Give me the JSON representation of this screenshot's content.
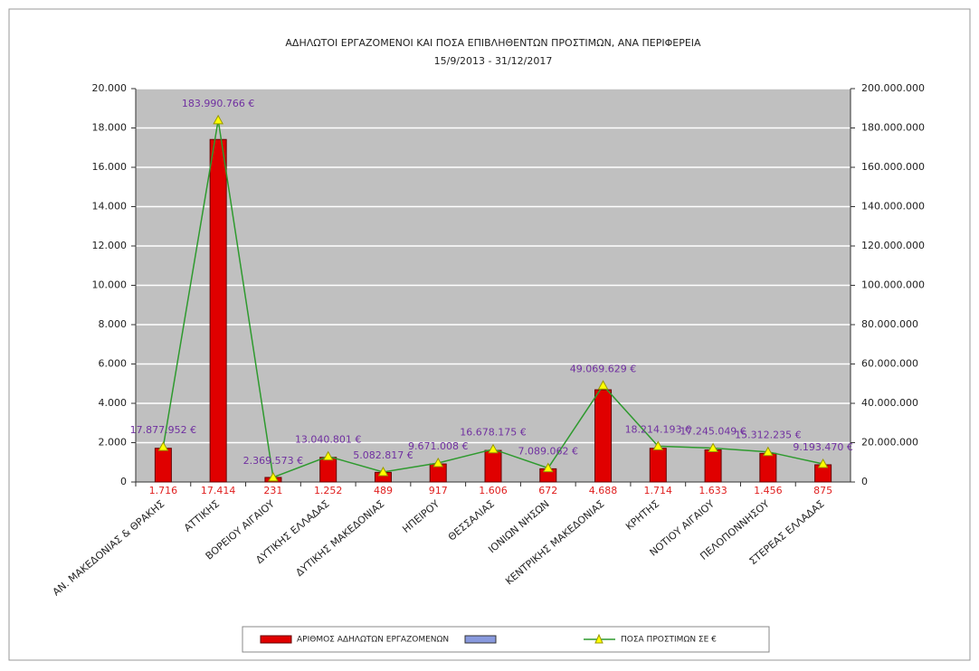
{
  "chart_data": {
    "type": "bar-line",
    "title": "ΑΔΗΛΩΤΟΙ ΕΡΓΑΖΟΜΕΝΟΙ ΚΑΙ ΠΟΣΑ ΕΠΙΒΛΗΘΕΝΤΩΝ ΠΡΟΣΤΙΜΩΝ, ΑΝΑ ΠΕΡΙΦΕΡΕΙΑ",
    "subtitle": "15/9/2013 - 31/12/2017",
    "categories": [
      "ΑΝ. ΜΑΚΕΔΟΝΙΑΣ & ΘΡΑΚΗΣ",
      "ΑΤΤΙΚΗΣ",
      "ΒΟΡΕΙΟΥ ΑΙΓΑΙΟΥ",
      "ΔΥΤΙΚΗΣ ΕΛΛΑΔΑΣ",
      "ΔΥΤΙΚΗΣ ΜΑΚΕΔΟΝΙΑΣ",
      "ΗΠΕΙΡΟΥ",
      "ΘΕΣΣΑΛΙΑΣ",
      "ΙΟΝΙΩΝ ΝΗΣΩΝ",
      "ΚΕΝΤΡΙΚΗΣ ΜΑΚΕΔΟΝΙΑΣ",
      "ΚΡΗΤΗΣ",
      "ΝΟΤΙΟΥ ΑΙΓΑΙΟΥ",
      "ΠΕΛΟΠΟΝΝΗΣΟΥ",
      "ΣΤΕΡΕΑΣ ΕΛΛΑΔΑΣ"
    ],
    "series": [
      {
        "name": "ΑΡΙΘΜΟΣ ΑΔΗΛΩΤΩΝ ΕΡΓΑΖΟΜΕΝΩΝ",
        "type": "bar",
        "color": "#e00000",
        "values": [
          1716,
          17414,
          231,
          1252,
          489,
          917,
          1606,
          672,
          4688,
          1714,
          1633,
          1456,
          875
        ],
        "value_labels": [
          "1.716",
          "17.414",
          "231",
          "1.252",
          "489",
          "917",
          "1.606",
          "672",
          "4.688",
          "1.714",
          "1.633",
          "1.456",
          "875"
        ]
      },
      {
        "name": "ΠΟΣΑ ΠΡΟΣΤΙΜΩΝ ΣΕ €",
        "type": "line",
        "axis": "y2",
        "color": "#2e9a2e",
        "values": [
          17877952,
          183990766,
          2369573,
          13040801,
          5082817,
          9671008,
          16678175,
          7089062,
          49069629,
          18214193,
          17245049,
          15312235,
          9193470
        ],
        "value_labels": [
          "17.877.952 €",
          "183.990.766 €",
          "2.369.573 €",
          "13.040.801 €",
          "5.082.817 €",
          "9.671.008 €",
          "16.678.175 €",
          "7.089.062 €",
          "49.069.629 €",
          "18.214.193 €",
          "17.245.049 €",
          "15.312.235 €",
          "9.193.470 €"
        ]
      }
    ],
    "ylim": [
      0,
      20000
    ],
    "yticks": [
      0,
      {
        "value": 2000,
        "label": "2.000"
      },
      {
        "value": 4000,
        "label": "4.000"
      },
      {
        "value": 6000,
        "label": "6.000"
      },
      {
        "value": 8000,
        "label": "8.000"
      },
      {
        "value": 10000,
        "label": "10.000"
      },
      {
        "value": 12000,
        "label": "12.000"
      },
      {
        "value": 14000,
        "label": "14.000"
      },
      {
        "value": 16000,
        "label": "16.000"
      },
      {
        "value": 18000,
        "label": "18.000"
      },
      {
        "value": 20000,
        "label": "20.000"
      }
    ],
    "y2lim": [
      0,
      200000000
    ],
    "y2ticks": [
      0,
      {
        "value": 20000000,
        "label": "20.000.000"
      },
      {
        "value": 40000000,
        "label": "40.000.000"
      },
      {
        "value": 60000000,
        "label": "60.000.000"
      },
      {
        "value": 80000000,
        "label": "80.000.000"
      },
      {
        "value": 100000000,
        "label": "100.000.000"
      },
      {
        "value": 120000000,
        "label": "120.000.000"
      },
      {
        "value": 140000000,
        "label": "140.000.000"
      },
      {
        "value": 160000000,
        "label": "160.000.000"
      },
      {
        "value": 180000000,
        "label": "180.000.000"
      },
      {
        "value": 200000000,
        "label": "200.000.000"
      }
    ],
    "grid": true
  }
}
